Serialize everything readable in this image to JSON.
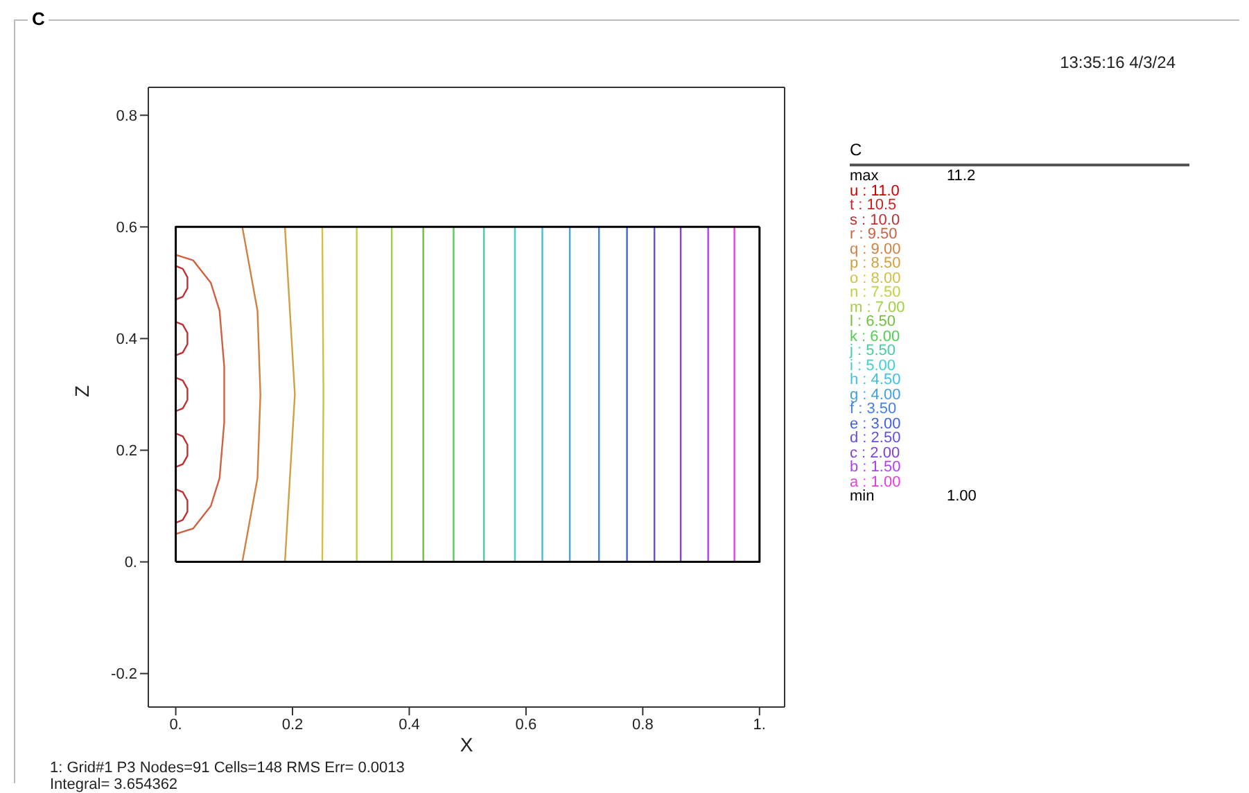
{
  "chart_data": {
    "type": "line",
    "title": "C",
    "xlabel": "X",
    "ylabel": "Z",
    "legend_title": "C",
    "legend": "right",
    "marker": "none",
    "line_style": "solid",
    "xlim": [
      -0.047,
      1.043
    ],
    "ylim": [
      -0.26,
      0.85
    ],
    "xticks": [
      {
        "value": 0,
        "label": "0."
      },
      0.2,
      0.4,
      0.6,
      0.8,
      {
        "value": 1,
        "label": "1."
      }
    ],
    "yticks": [
      -0.2,
      {
        "value": 0,
        "label": "0."
      },
      0.2,
      0.4,
      0.6,
      0.8
    ],
    "annotations": [
      "13:35:16 4/3/24",
      "max",
      "11.2",
      "min",
      "1.00",
      "1: Grid#1 P3 Nodes=91 Cells=148 RMS Err= 0.0013",
      "Integral= 3.654362"
    ],
    "series": [
      {
        "name": "u : 11.0",
        "color": "#d00000"
      },
      {
        "name": "t : 10.5",
        "color": "#d02020"
      },
      {
        "name": "s : 10.0",
        "color": "#c03030",
        "x": [
          0,
          0.012,
          0.02,
          0.02,
          0.012,
          0,
          null,
          0,
          0.012,
          0.02,
          0.02,
          0.012,
          0,
          null,
          0,
          0.012,
          0.02,
          0.02,
          0.012,
          0,
          null,
          0,
          0.012,
          0.02,
          0.02,
          0.012,
          0,
          null,
          0,
          0.012,
          0.02,
          0.02,
          0.012,
          0
        ],
        "values": [
          0.07,
          0.075,
          0.09,
          0.11,
          0.125,
          0.13,
          null,
          0.17,
          0.175,
          0.19,
          0.21,
          0.225,
          0.23,
          null,
          0.27,
          0.275,
          0.29,
          0.31,
          0.325,
          0.33,
          null,
          0.37,
          0.375,
          0.39,
          0.41,
          0.425,
          0.43,
          null,
          0.47,
          0.475,
          0.49,
          0.51,
          0.525,
          0.53
        ]
      },
      {
        "name": "r : 9.50",
        "color": "#d06040",
        "x": [
          0,
          0.03,
          0.06,
          0.075,
          0.083,
          0.083,
          0.075,
          0.06,
          0.03,
          0
        ],
        "values": [
          0.55,
          0.54,
          0.5,
          0.45,
          0.35,
          0.25,
          0.15,
          0.1,
          0.06,
          0.05
        ]
      },
      {
        "name": "q : 9.00",
        "color": "#d08040",
        "x": [
          0.114,
          0.14,
          0.145,
          0.14,
          0.114
        ],
        "values": [
          0,
          0.15,
          0.3,
          0.45,
          0.6
        ]
      },
      {
        "name": "p : 8.50",
        "color": "#d0a040",
        "x": [
          0.187,
          0.204,
          0.187
        ],
        "values": [
          0,
          0.3,
          0.6
        ]
      },
      {
        "name": "o : 8.00",
        "color": "#d0c040",
        "x": [
          0.251,
          0.253,
          0.251
        ],
        "values": [
          0,
          0.3,
          0.6
        ]
      },
      {
        "name": "n : 7.50",
        "color": "#c0d040",
        "x": [
          0.31,
          0.31
        ],
        "values": [
          0,
          0.6
        ]
      },
      {
        "name": "m : 7.00",
        "color": "#a0d040",
        "x": [
          0.37,
          0.37
        ],
        "values": [
          0,
          0.6
        ]
      },
      {
        "name": "l : 6.50",
        "color": "#70c040",
        "x": [
          0.424,
          0.424
        ],
        "values": [
          0,
          0.6
        ]
      },
      {
        "name": "k : 6.00",
        "color": "#50d050",
        "x": [
          0.476,
          0.476
        ],
        "values": [
          0,
          0.6
        ]
      },
      {
        "name": "j : 5.50",
        "color": "#40d0a0",
        "x": [
          0.528,
          0.528
        ],
        "values": [
          0,
          0.6
        ]
      },
      {
        "name": "i : 5.00",
        "color": "#40d0d0",
        "x": [
          0.581,
          0.581
        ],
        "values": [
          0,
          0.6
        ]
      },
      {
        "name": "h : 4.50",
        "color": "#40c0e0",
        "x": [
          0.628,
          0.628
        ],
        "values": [
          0,
          0.6
        ]
      },
      {
        "name": "g : 4.00",
        "color": "#40a0e0",
        "x": [
          0.675,
          0.675
        ],
        "values": [
          0,
          0.6
        ]
      },
      {
        "name": "f : 3.50",
        "color": "#4080e8",
        "x": [
          0.725,
          0.725
        ],
        "values": [
          0,
          0.6
        ]
      },
      {
        "name": "e : 3.00",
        "color": "#4060e8",
        "x": [
          0.773,
          0.773
        ],
        "values": [
          0,
          0.6
        ]
      },
      {
        "name": "d : 2.50",
        "color": "#6050e0",
        "x": [
          0.82,
          0.82
        ],
        "values": [
          0,
          0.6
        ]
      },
      {
        "name": "c : 2.00",
        "color": "#8040e0",
        "x": [
          0.865,
          0.865
        ],
        "values": [
          0,
          0.6
        ]
      },
      {
        "name": "b : 1.50",
        "color": "#b040f0",
        "x": [
          0.912,
          0.912
        ],
        "values": [
          0,
          0.6
        ]
      },
      {
        "name": "a : 1.00",
        "color": "#e040e0",
        "x": [
          0.957,
          0.957
        ],
        "values": [
          0,
          0.6
        ]
      },
      {
        "color": "#000000",
        "x": [
          0,
          1,
          1
        ],
        "values": [
          0,
          0,
          0.6
        ]
      },
      {
        "color": "#000000",
        "x": [
          0,
          0,
          1
        ],
        "values": [
          0,
          0.6,
          0.6
        ]
      }
    ]
  }
}
